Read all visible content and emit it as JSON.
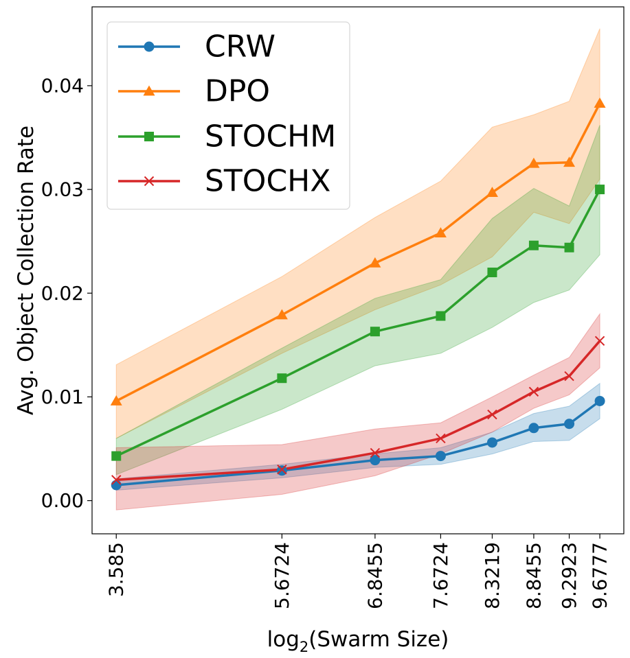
{
  "chart_data": {
    "type": "line",
    "title": "",
    "xlabel_prefix": "log",
    "xlabel_sub": "2",
    "xlabel_suffix": "(Swarm Size)",
    "ylabel": "Avg. Object Collection Rate",
    "x": [
      3.585,
      5.6724,
      6.8455,
      7.6724,
      8.3219,
      8.8455,
      9.2923,
      9.6777
    ],
    "xtick_labels": [
      "3.585",
      "5.6724",
      "6.8455",
      "7.6724",
      "8.3219",
      "8.8455",
      "9.2923",
      "9.6777"
    ],
    "ylim": [
      -0.0032,
      0.0476
    ],
    "xlim": [
      3.28,
      9.98
    ],
    "yticks": [
      0.0,
      0.01,
      0.02,
      0.03,
      0.04
    ],
    "ytick_labels": [
      "0.00",
      "0.01",
      "0.02",
      "0.03",
      "0.04"
    ],
    "legend_position": "top-left",
    "grid": false,
    "series": [
      {
        "name": "CRW",
        "color": "#1f77b4",
        "marker": "circle",
        "values": [
          0.0015,
          0.0029,
          0.0039,
          0.0043,
          0.0056,
          0.007,
          0.0074,
          0.0096
        ],
        "lower": [
          0.001,
          0.0022,
          0.0032,
          0.0035,
          0.0045,
          0.0057,
          0.0058,
          0.0079
        ],
        "upper": [
          0.0021,
          0.0035,
          0.0045,
          0.0051,
          0.0066,
          0.0084,
          0.0091,
          0.0113
        ]
      },
      {
        "name": "DPO",
        "color": "#ff7f0e",
        "marker": "triangle",
        "values": [
          0.0096,
          0.0179,
          0.0229,
          0.0258,
          0.0297,
          0.0325,
          0.0326,
          0.0383
        ],
        "lower": [
          0.006,
          0.0142,
          0.0184,
          0.0208,
          0.0235,
          0.0278,
          0.0267,
          0.031
        ],
        "upper": [
          0.0131,
          0.0216,
          0.0273,
          0.0308,
          0.036,
          0.0372,
          0.0385,
          0.0455
        ]
      },
      {
        "name": "STOCHM",
        "color": "#2ca02c",
        "marker": "square",
        "values": [
          0.0043,
          0.0118,
          0.0163,
          0.0178,
          0.022,
          0.0246,
          0.0244,
          0.03
        ],
        "lower": [
          0.0025,
          0.0088,
          0.013,
          0.0142,
          0.0167,
          0.0191,
          0.0203,
          0.0237
        ],
        "upper": [
          0.006,
          0.0147,
          0.0195,
          0.0213,
          0.0272,
          0.0301,
          0.0284,
          0.0362
        ]
      },
      {
        "name": "STOCHX",
        "color": "#d62728",
        "marker": "x",
        "values": [
          0.002,
          0.003,
          0.0046,
          0.006,
          0.0083,
          0.0105,
          0.012,
          0.0154
        ],
        "lower": [
          -0.0009,
          0.0006,
          0.0024,
          0.0045,
          0.0066,
          0.0089,
          0.0102,
          0.0128
        ],
        "upper": [
          0.0051,
          0.0054,
          0.0069,
          0.0075,
          0.01,
          0.0121,
          0.0138,
          0.018
        ]
      }
    ]
  }
}
